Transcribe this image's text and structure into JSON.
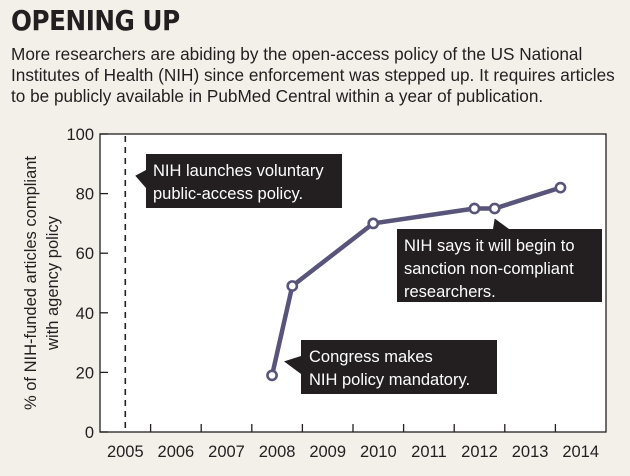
{
  "header": {
    "title": "OPENING UP",
    "subtitle": "More researchers are abiding by the open-access policy of the US National Institutes of Health (NIH) since enforcement was stepped up. It requires articles to be publicly available in PubMed Central within a year of publication."
  },
  "colors": {
    "background": "#f2f0e9",
    "line": "#58547a",
    "marker_fill": "#ffffff",
    "annotation_box": "#231f20",
    "annotation_text": "#ffffff"
  },
  "chart_data": {
    "type": "line",
    "title": "OPENING UP",
    "ylabel_lines": [
      "% of NIH-funded articles compliant",
      "with agency policy"
    ],
    "xlabel": "",
    "x_categories": [
      "2005",
      "2006",
      "2007",
      "2008",
      "2009",
      "2010",
      "2011",
      "2012",
      "2013",
      "2014"
    ],
    "xlim": [
      2004.5,
      2014.5
    ],
    "ylim": [
      0,
      100
    ],
    "y_ticks": [
      0,
      20,
      40,
      60,
      80,
      100
    ],
    "grid": false,
    "series": [
      {
        "points": [
          {
            "x": 2007.9,
            "y": 19
          },
          {
            "x": 2008.3,
            "y": 49
          },
          {
            "x": 2009.9,
            "y": 70
          },
          {
            "x": 2011.9,
            "y": 75
          },
          {
            "x": 2012.3,
            "y": 75
          },
          {
            "x": 2013.6,
            "y": 82
          }
        ]
      }
    ],
    "reference_lines": [
      {
        "x": 2005,
        "style": "dashed"
      }
    ],
    "annotations": [
      {
        "lines": [
          "NIH launches voluntary",
          "public-access policy."
        ],
        "points_to_x": 2005,
        "points_to_y": 86
      },
      {
        "lines": [
          "Congress makes",
          "NIH policy mandatory."
        ],
        "points_to_x": 2007.9,
        "points_to_y": 19
      },
      {
        "lines": [
          "NIH says it will begin to",
          "sanction non-compliant",
          "researchers."
        ],
        "points_to_x": 2012.3,
        "points_to_y": 75
      }
    ]
  }
}
